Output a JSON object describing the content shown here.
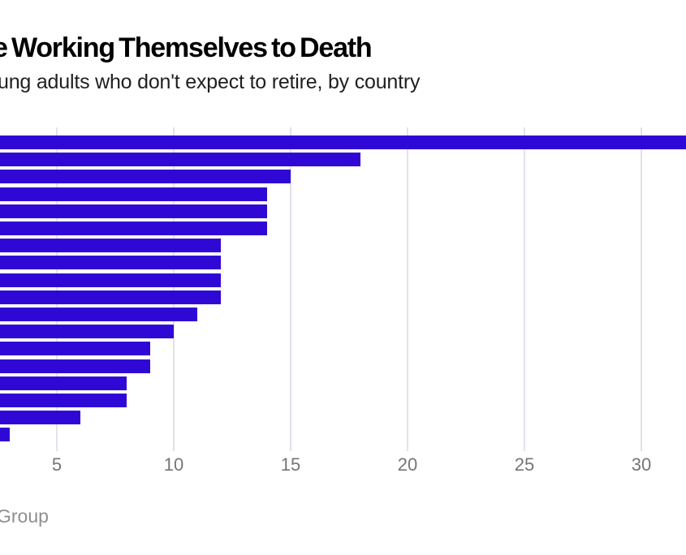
{
  "header": {
    "title": "e Working Themselves to Death",
    "subtitle": "ung adults who don't expect to retire, by country",
    "crop_note": "title and subtitle are cut off at the left edge of the image"
  },
  "source": {
    "visible_text": "Group"
  },
  "chart_data": {
    "type": "bar",
    "orientation": "horizontal",
    "title": "e Working Themselves to Death",
    "subtitle": "ung adults who don't expect to retire, by country",
    "xlabel": "",
    "ylabel": "",
    "x_ticks": [
      5,
      10,
      15,
      20,
      25,
      30
    ],
    "x_axis_visible_range": [
      2.6,
      32.1
    ],
    "grid": true,
    "legend": false,
    "bar_count": 18,
    "values": [
      32.5,
      18,
      15,
      14,
      14,
      14,
      12,
      12,
      12,
      12,
      11,
      10,
      9,
      9,
      8,
      8,
      6,
      3
    ],
    "notes": {
      "category_labels": "country labels are cropped out of frame at the left edge; bars are clipped at left (axis zero lies off-screen)",
      "first_bar": "top bar extends beyond the right edge of the image; its true end value is not visible (>32)"
    },
    "colors": {
      "bar": "#3008d6",
      "gridline": "#e2e2ea",
      "tick_label": "#757575",
      "title": "#000000",
      "subtitle": "#1f1f1f",
      "source": "#8f8f8f"
    }
  }
}
